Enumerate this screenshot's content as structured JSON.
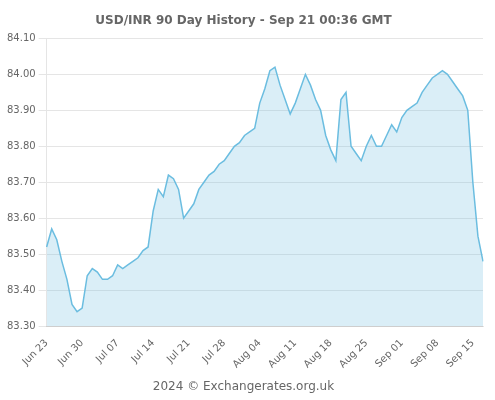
{
  "chart_data": {
    "type": "area",
    "title": "USD/INR 90 Day History - Sep 21 00:36 GMT",
    "annotations": [
      "2024 © Exchangerates.org.uk"
    ],
    "color": "#6bbde0",
    "grid": "y",
    "categories": [
      "Jun 23",
      null,
      null,
      null,
      null,
      null,
      null,
      "Jun 30",
      null,
      null,
      null,
      null,
      null,
      null,
      "Jul 07",
      null,
      null,
      null,
      null,
      null,
      null,
      "Jul 14",
      null,
      null,
      null,
      null,
      null,
      null,
      "Jul 21",
      null,
      null,
      null,
      null,
      null,
      null,
      "Jul 28",
      null,
      null,
      null,
      null,
      null,
      null,
      "Aug 04",
      null,
      null,
      null,
      null,
      null,
      null,
      "Aug 11",
      null,
      null,
      null,
      null,
      null,
      null,
      "Aug 18",
      null,
      null,
      null,
      null,
      null,
      null,
      "Aug 25",
      null,
      null,
      null,
      null,
      null,
      null,
      "Sep 01",
      null,
      null,
      null,
      null,
      null,
      null,
      "Sep 08",
      null,
      null,
      null,
      null,
      null,
      null,
      "Sep 15",
      null,
      null
    ],
    "values": [
      83.52,
      83.57,
      83.54,
      83.48,
      83.43,
      83.36,
      83.34,
      83.35,
      83.44,
      83.46,
      83.45,
      83.43,
      83.43,
      83.44,
      83.47,
      83.46,
      83.47,
      83.48,
      83.49,
      83.51,
      83.52,
      83.62,
      83.68,
      83.66,
      83.72,
      83.71,
      83.68,
      83.6,
      83.62,
      83.64,
      83.68,
      83.7,
      83.72,
      83.73,
      83.75,
      83.76,
      83.78,
      83.8,
      83.81,
      83.83,
      83.84,
      83.85,
      83.92,
      83.96,
      84.01,
      84.02,
      83.97,
      83.93,
      83.89,
      83.92,
      83.96,
      84.0,
      83.97,
      83.93,
      83.9,
      83.83,
      83.79,
      83.76,
      83.93,
      83.95,
      83.8,
      83.78,
      83.76,
      83.8,
      83.83,
      83.8,
      83.8,
      83.83,
      83.86,
      83.84,
      83.88,
      83.9,
      83.91,
      83.92,
      83.95,
      83.97,
      83.99,
      84.0,
      84.01,
      84.0,
      83.98,
      83.96,
      83.94,
      83.9,
      83.7,
      83.55,
      83.48
    ],
    "ylim": [
      83.3,
      84.1
    ],
    "yticks": [
      {
        "value": 83.3,
        "label": "83.30"
      },
      {
        "value": 83.4,
        "label": "83.40"
      },
      {
        "value": 83.5,
        "label": "83.50"
      },
      {
        "value": 83.6,
        "label": "83.60"
      },
      {
        "value": 83.7,
        "label": "83.70"
      },
      {
        "value": 83.8,
        "label": "83.80"
      },
      {
        "value": 83.9,
        "label": "83.90"
      },
      {
        "value": 84.0,
        "label": "84.00"
      },
      {
        "value": 84.1,
        "label": "84.10"
      }
    ]
  }
}
